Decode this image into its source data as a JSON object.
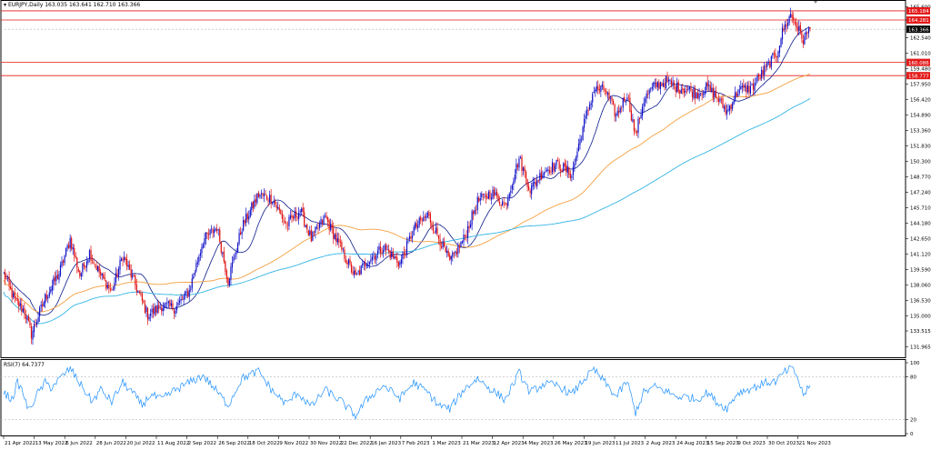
{
  "header": {
    "symbol": "EURJPY,Daily",
    "ohlc": "163.035 163.641 162.710 163.366"
  },
  "rsi": {
    "label": "RSI(7) 64.7377",
    "levels": [
      "100",
      "80",
      "20",
      "0"
    ]
  },
  "colors": {
    "bull": "#1010c8",
    "bear": "#e01010",
    "ma_short": "#0a1a8a",
    "ma_mid": "#f5a040",
    "ma_long": "#33b5e5",
    "rsi_line": "#1e90ff",
    "hline": "#e31a1a"
  },
  "chart_data": [
    {
      "type": "candlestick",
      "name": "price",
      "ylim": [
        131.0,
        165.9
      ],
      "price_ticks": [
        "165.600",
        "164.281",
        "162.540",
        "161.010",
        "159.480",
        "157.950",
        "156.420",
        "154.890",
        "153.360",
        "151.830",
        "150.300",
        "148.770",
        "147.240",
        "145.710",
        "144.180",
        "142.650",
        "141.120",
        "139.590",
        "138.060",
        "136.530",
        "135.000",
        "133.515",
        "131.965"
      ],
      "hlines": [
        {
          "value": 164.281,
          "label": "164.281"
        },
        {
          "value": 165.184,
          "label": "165.184"
        },
        {
          "value": 160.086,
          "label": "160.086"
        },
        {
          "value": 158.777,
          "label": "158.777"
        }
      ],
      "current_price": {
        "value": 163.366,
        "label": "163.366"
      },
      "x_labels": [
        "21 Apr 2022",
        "13 May 2022",
        "6 Jun 2022",
        "28 Jun 2022",
        "20 Jul 2022",
        "11 Aug 2022",
        "2 Sep 2022",
        "26 Sep 2022",
        "18 Oct 2022",
        "9 Nov 2022",
        "30 Nov 2022",
        "22 Dec 2022",
        "16 Jan 2023",
        "7 Feb 2023",
        "1 Mar 2023",
        "21 Mar 2023",
        "12 Apr 2023",
        "4 May 2023",
        "26 May 2023",
        "19 Jun 2023",
        "11 Jul 2023",
        "2 Aug 2023",
        "24 Aug 2023",
        "15 Sep 2023",
        "9 Oct 2023",
        "30 Oct 2023",
        "21 Nov 2023"
      ],
      "anchors": [
        [
          0,
          139.2
        ],
        [
          8,
          136.5
        ],
        [
          15,
          135.5
        ],
        [
          20,
          133.2
        ],
        [
          30,
          136.8
        ],
        [
          40,
          139.2
        ],
        [
          48,
          142.6
        ],
        [
          55,
          139.0
        ],
        [
          62,
          141.3
        ],
        [
          70,
          139.0
        ],
        [
          78,
          137.4
        ],
        [
          86,
          141.0
        ],
        [
          94,
          138.4
        ],
        [
          104,
          135.1
        ],
        [
          114,
          136.0
        ],
        [
          124,
          135.8
        ],
        [
          134,
          137.5
        ],
        [
          144,
          142.5
        ],
        [
          154,
          143.8
        ],
        [
          162,
          138.5
        ],
        [
          172,
          143.8
        ],
        [
          184,
          147.0
        ],
        [
          194,
          146.6
        ],
        [
          204,
          144.0
        ],
        [
          214,
          145.5
        ],
        [
          222,
          142.6
        ],
        [
          232,
          144.8
        ],
        [
          244,
          141.5
        ],
        [
          254,
          138.8
        ],
        [
          262,
          140.4
        ],
        [
          274,
          141.8
        ],
        [
          286,
          140.2
        ],
        [
          296,
          143.6
        ],
        [
          306,
          145.0
        ],
        [
          314,
          142.8
        ],
        [
          322,
          140.3
        ],
        [
          332,
          142.6
        ],
        [
          342,
          146.3
        ],
        [
          352,
          147.2
        ],
        [
          362,
          146.0
        ],
        [
          372,
          150.6
        ],
        [
          380,
          147.5
        ],
        [
          390,
          149.4
        ],
        [
          400,
          150.0
        ],
        [
          410,
          149.0
        ],
        [
          418,
          153.6
        ],
        [
          426,
          157.4
        ],
        [
          434,
          157.4
        ],
        [
          442,
          154.8
        ],
        [
          450,
          157.0
        ],
        [
          456,
          152.8
        ],
        [
          462,
          156.4
        ],
        [
          470,
          157.8
        ],
        [
          478,
          158.2
        ],
        [
          486,
          157.6
        ],
        [
          494,
          157.4
        ],
        [
          500,
          157.0
        ],
        [
          508,
          157.6
        ],
        [
          516,
          156.4
        ],
        [
          522,
          155.2
        ],
        [
          530,
          157.3
        ],
        [
          540,
          157.6
        ],
        [
          550,
          159.5
        ],
        [
          558,
          161.0
        ],
        [
          562,
          163.1
        ],
        [
          568,
          164.8
        ],
        [
          572,
          163.8
        ],
        [
          577,
          162.3
        ],
        [
          582,
          163.4
        ]
      ]
    },
    {
      "type": "line",
      "name": "RSI(7)",
      "ylim": [
        0,
        100
      ],
      "levels": [
        80,
        20
      ],
      "anchors": [
        [
          0,
          58
        ],
        [
          6,
          48
        ],
        [
          10,
          72
        ],
        [
          14,
          58
        ],
        [
          18,
          32
        ],
        [
          24,
          55
        ],
        [
          30,
          72
        ],
        [
          34,
          65
        ],
        [
          42,
          80
        ],
        [
          48,
          92
        ],
        [
          56,
          68
        ],
        [
          64,
          45
        ],
        [
          70,
          62
        ],
        [
          78,
          45
        ],
        [
          86,
          72
        ],
        [
          92,
          60
        ],
        [
          100,
          40
        ],
        [
          106,
          55
        ],
        [
          114,
          48
        ],
        [
          124,
          62
        ],
        [
          134,
          72
        ],
        [
          144,
          82
        ],
        [
          152,
          64
        ],
        [
          162,
          40
        ],
        [
          172,
          78
        ],
        [
          184,
          88
        ],
        [
          194,
          60
        ],
        [
          204,
          42
        ],
        [
          212,
          58
        ],
        [
          222,
          38
        ],
        [
          232,
          62
        ],
        [
          244,
          45
        ],
        [
          254,
          25
        ],
        [
          262,
          48
        ],
        [
          274,
          68
        ],
        [
          286,
          50
        ],
        [
          296,
          72
        ],
        [
          306,
          58
        ],
        [
          314,
          40
        ],
        [
          322,
          35
        ],
        [
          332,
          62
        ],
        [
          342,
          78
        ],
        [
          352,
          62
        ],
        [
          362,
          48
        ],
        [
          372,
          86
        ],
        [
          380,
          58
        ],
        [
          390,
          70
        ],
        [
          400,
          68
        ],
        [
          410,
          55
        ],
        [
          418,
          75
        ],
        [
          426,
          90
        ],
        [
          434,
          72
        ],
        [
          442,
          52
        ],
        [
          450,
          74
        ],
        [
          456,
          30
        ],
        [
          462,
          58
        ],
        [
          470,
          66
        ],
        [
          478,
          60
        ],
        [
          486,
          52
        ],
        [
          494,
          52
        ],
        [
          500,
          48
        ],
        [
          508,
          58
        ],
        [
          516,
          42
        ],
        [
          522,
          36
        ],
        [
          530,
          58
        ],
        [
          540,
          64
        ],
        [
          550,
          72
        ],
        [
          558,
          74
        ],
        [
          562,
          84
        ],
        [
          568,
          92
        ],
        [
          572,
          84
        ],
        [
          577,
          55
        ],
        [
          582,
          66
        ]
      ]
    }
  ]
}
